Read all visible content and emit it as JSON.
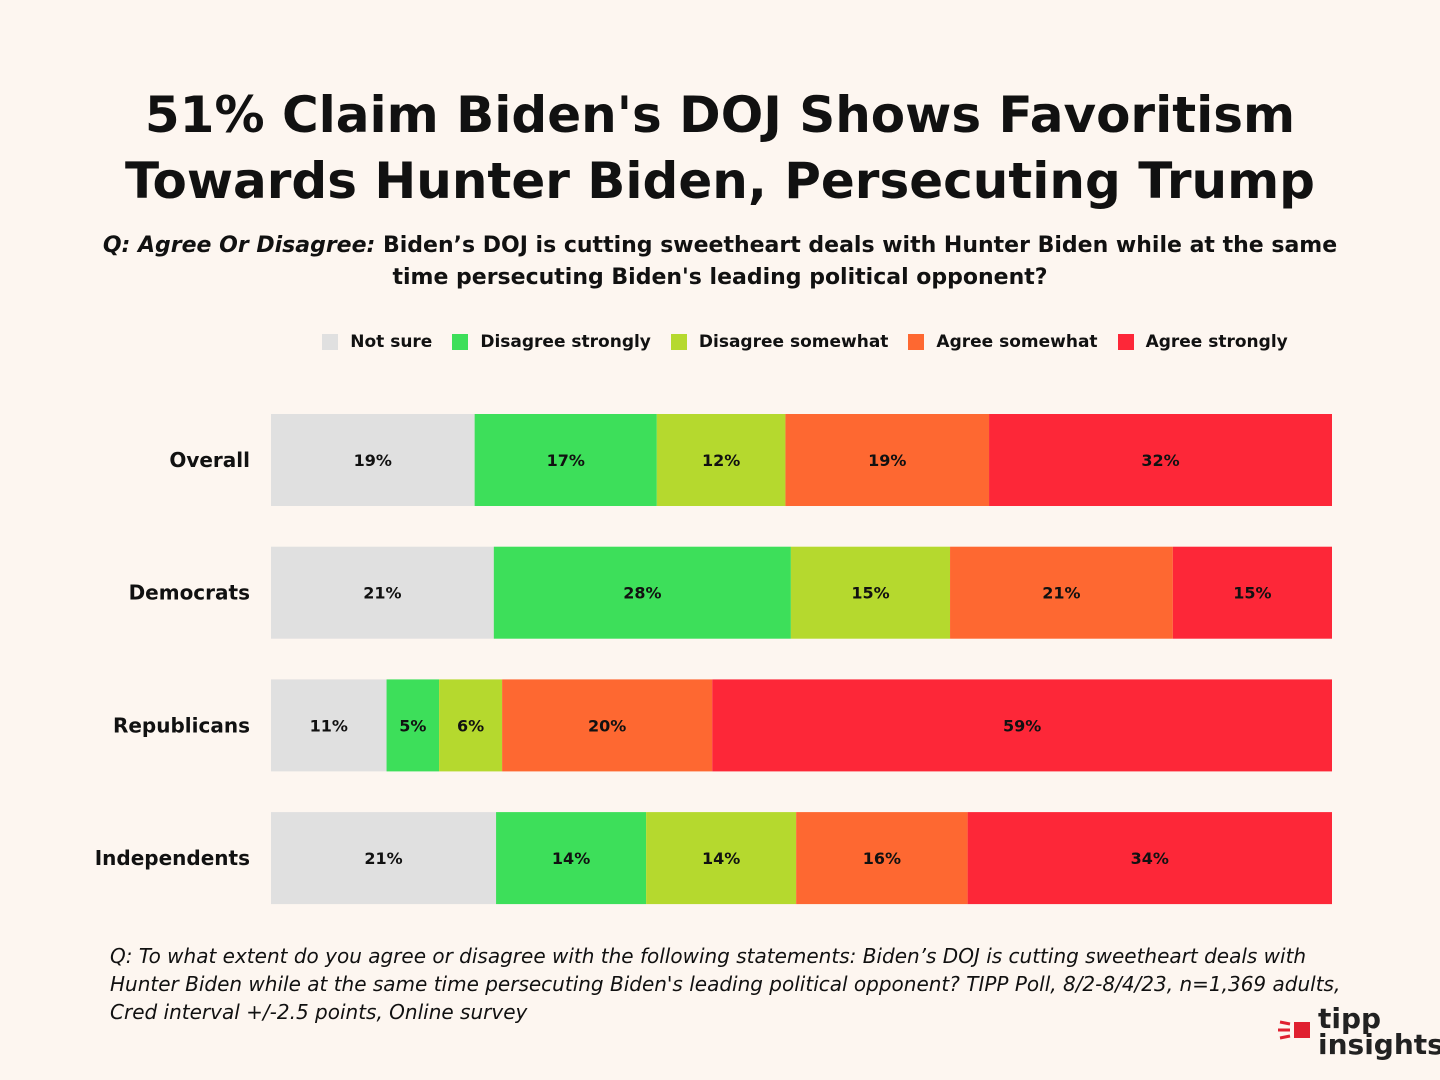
{
  "chart_data": {
    "type": "bar",
    "orientation": "horizontal-stacked-100",
    "title_line1": "51% Claim Biden's DOJ Shows Favoritism",
    "title_line2": "Towards Hunter Biden, Persecuting Trump",
    "question_prefix": "Q: Agree Or Disagree:",
    "question_text": " Biden’s DOJ is cutting sweetheart deals with Hunter Biden while at the same time persecuting Biden's leading political opponent?",
    "categories": [
      "Overall",
      "Democrats",
      "Republicans",
      "Independents"
    ],
    "series": [
      {
        "name": "Not sure",
        "color": "#e0e0e0",
        "values": [
          19,
          21,
          11,
          21
        ]
      },
      {
        "name": "Disagree strongly",
        "color": "#3ddf5a",
        "values": [
          17,
          28,
          5,
          14
        ]
      },
      {
        "name": "Disagree somewhat",
        "color": "#b5d92e",
        "values": [
          12,
          15,
          6,
          14
        ]
      },
      {
        "name": "Agree somewhat",
        "color": "#fe6831",
        "values": [
          19,
          21,
          20,
          16
        ]
      },
      {
        "name": "Agree strongly",
        "color": "#fd2738",
        "values": [
          32,
          15,
          59,
          34
        ]
      }
    ],
    "value_suffix": "%",
    "legend_position": "top"
  },
  "footnote": "Q:  To what extent do you agree or disagree with the following statements: Biden’s DOJ is cutting sweetheart deals with Hunter Biden while at the same time persecuting Biden's leading political opponent?  TIPP Poll, 8/2-8/4/23, n=1,369 adults, Cred interval +/-2.5 points, Online survey",
  "logo": {
    "line1": "tipp",
    "line2": "insights",
    "accent": "#e02030"
  }
}
